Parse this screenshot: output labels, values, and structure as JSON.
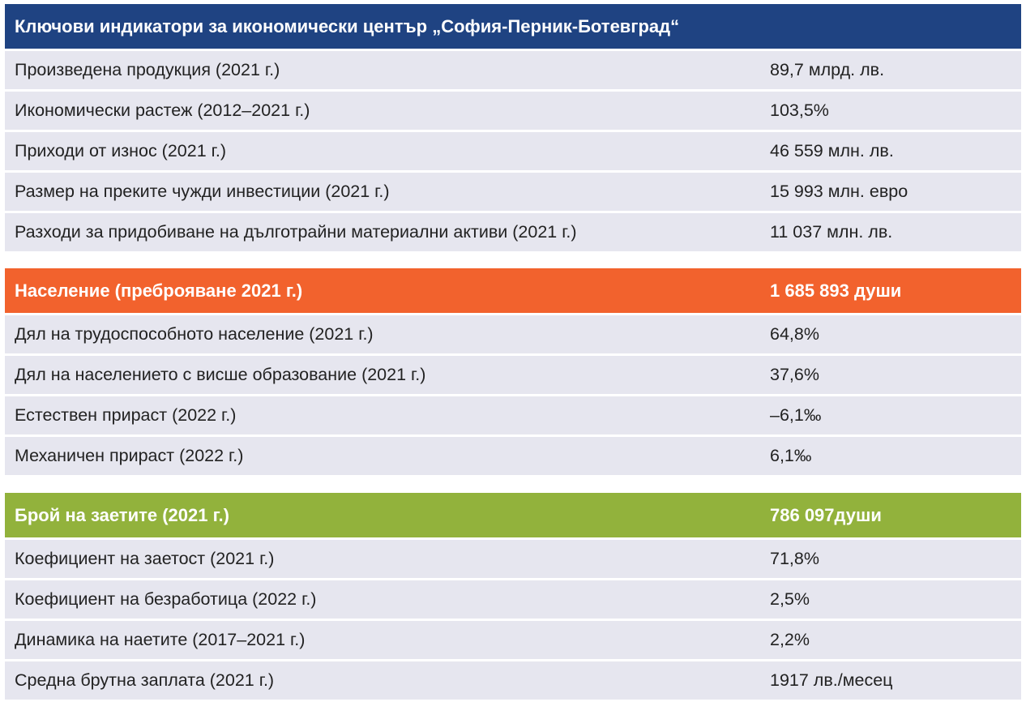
{
  "title": "Ключови индикатори за икономически център „София-Перник-Ботевград“",
  "economy": {
    "rows": [
      {
        "label": "Произведена продукция (2021 г.)",
        "value": "89,7 млрд. лв."
      },
      {
        "label": "Икономически растеж (2012–2021 г.)",
        "value": "103,5%"
      },
      {
        "label": "Приходи от износ (2021 г.)",
        "value": "46 559 млн. лв."
      },
      {
        "label": "Размер на преките чужди инвестиции (2021 г.)",
        "value": "15 993 млн. евро"
      },
      {
        "label": "Разходи за придобиване на дълготрайни материални активи (2021 г.)",
        "value": "11 037 млн. лв."
      }
    ]
  },
  "population": {
    "header_label": "Население (преброяване 2021 г.)",
    "header_value": "1 685 893 души",
    "rows": [
      {
        "label": "Дял на трудоспособното население (2021 г.)",
        "value": "64,8%"
      },
      {
        "label": "Дял на населението с висше образование (2021 г.)",
        "value": "37,6%"
      },
      {
        "label": "Естествен прираст (2022 г.)",
        "value": "–6,1‰"
      },
      {
        "label": "Механичен прираст (2022 г.)",
        "value": "6,1‰"
      }
    ]
  },
  "employment": {
    "header_label": "Брой на заетите (2021 г.)",
    "header_value": "786 097души",
    "rows": [
      {
        "label": "Коефициент на заетост (2021 г.)",
        "value": "71,8%"
      },
      {
        "label": "Коефициент на безработица (2022 г.)",
        "value": "2,5%"
      },
      {
        "label": "Динамика на наетите (2017–2021 г.)",
        "value": "2,2%"
      },
      {
        "label": "Средна брутна заплата (2021 г.)",
        "value": "1917 лв./месец"
      }
    ]
  },
  "colors": {
    "header_blue": "#1f4382",
    "header_orange": "#f2622d",
    "header_green": "#92b23c",
    "row_bg": "#e6e6ef"
  }
}
